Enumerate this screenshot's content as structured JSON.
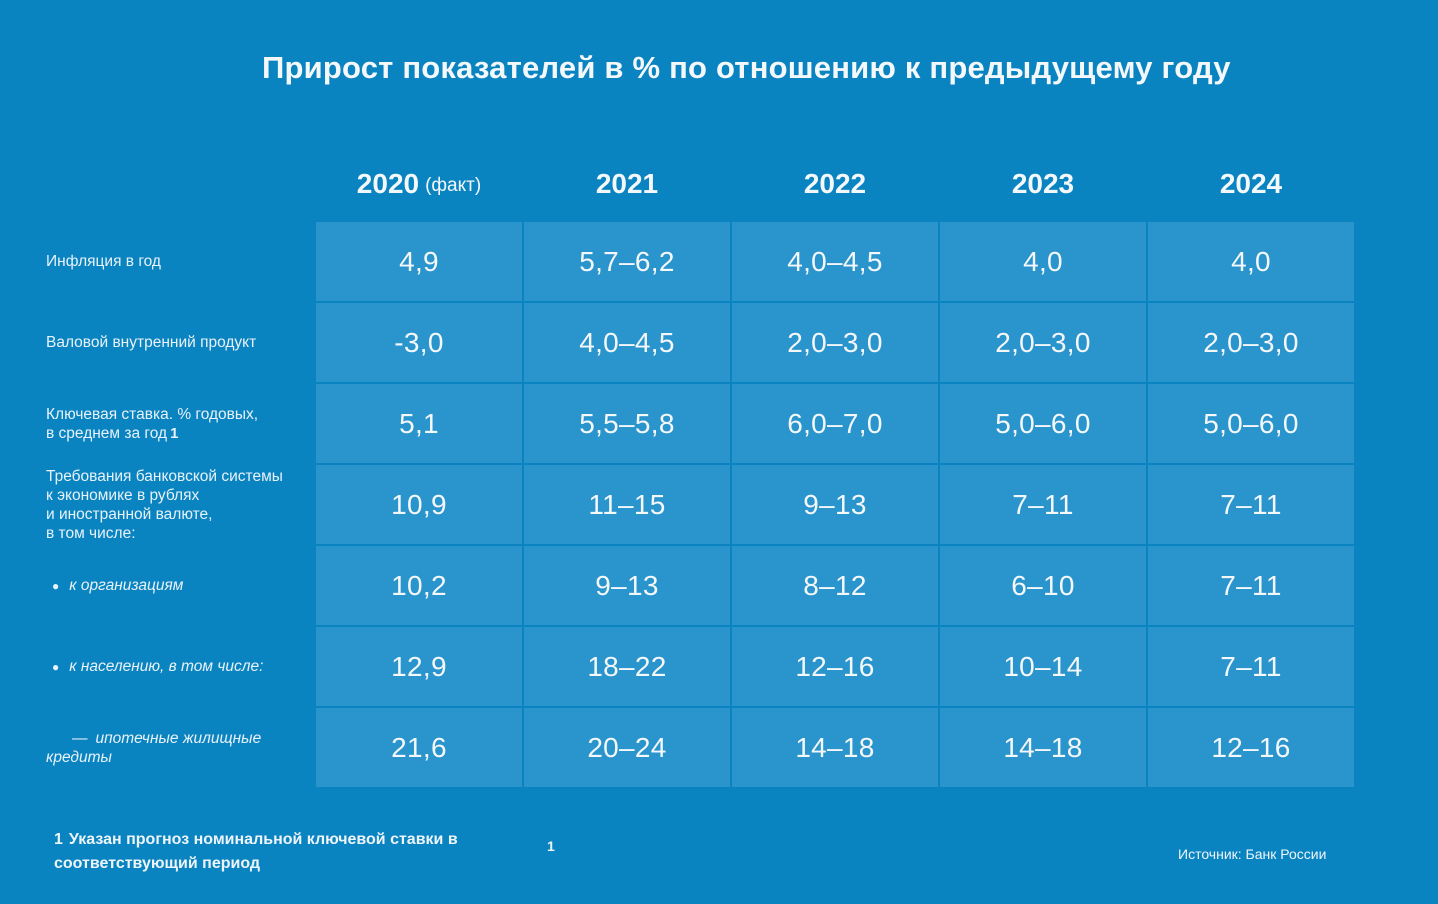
{
  "chart_data": {
    "type": "table",
    "title": "Прирост показателей в % по отношению к предыдущему году",
    "columns": [
      {
        "year": "2020",
        "note": "(факт)"
      },
      {
        "year": "2021",
        "note": ""
      },
      {
        "year": "2022",
        "note": ""
      },
      {
        "year": "2023",
        "note": ""
      },
      {
        "year": "2024",
        "note": ""
      }
    ],
    "rows": [
      {
        "label": "Инфляция в год",
        "style": "normal",
        "values": [
          "4,9",
          "5,7–6,2",
          "4,0–4,5",
          "4,0",
          "4,0"
        ]
      },
      {
        "label": "Валовой внутренний продукт",
        "style": "normal",
        "values": [
          "-3,0",
          "4,0–4,5",
          "2,0–3,0",
          "2,0–3,0",
          "2,0–3,0"
        ]
      },
      {
        "label": "Ключевая ставка. % годовых,\nв среднем за год",
        "style": "normal",
        "footnote_mark": "1",
        "values": [
          "5,1",
          "5,5–5,8",
          "6,0–7,0",
          "5,0–6,0",
          "5,0–6,0"
        ]
      },
      {
        "label": "Требования банковской системы\nк экономике в рублях\nи иностранной валюте,\nв том числе:",
        "style": "normal",
        "values": [
          "10,9",
          "11–15",
          "9–13",
          "7–11",
          "7–11"
        ]
      },
      {
        "label": "к организациям",
        "style": "bullet",
        "values": [
          "10,2",
          "9–13",
          "8–12",
          "6–10",
          "7–11"
        ]
      },
      {
        "label": "к населению, в том числе:",
        "style": "bullet",
        "values": [
          "12,9",
          "18–22",
          "12–16",
          "10–14",
          "7–11"
        ]
      },
      {
        "label": "ипотечные жилищные\nкредиты",
        "style": "dash",
        "values": [
          "21,6",
          "20–24",
          "14–18",
          "14–18",
          "12–16"
        ]
      }
    ]
  },
  "footnote": {
    "number": "1",
    "text": "Указан прогноз номинальной ключевой ставки в соответствующий период",
    "lone_mark": "1"
  },
  "source": "Источник: Банк России",
  "colors": {
    "background": "#0a84c1",
    "cell": "#2a94cc",
    "text": "#f4f8fb"
  }
}
